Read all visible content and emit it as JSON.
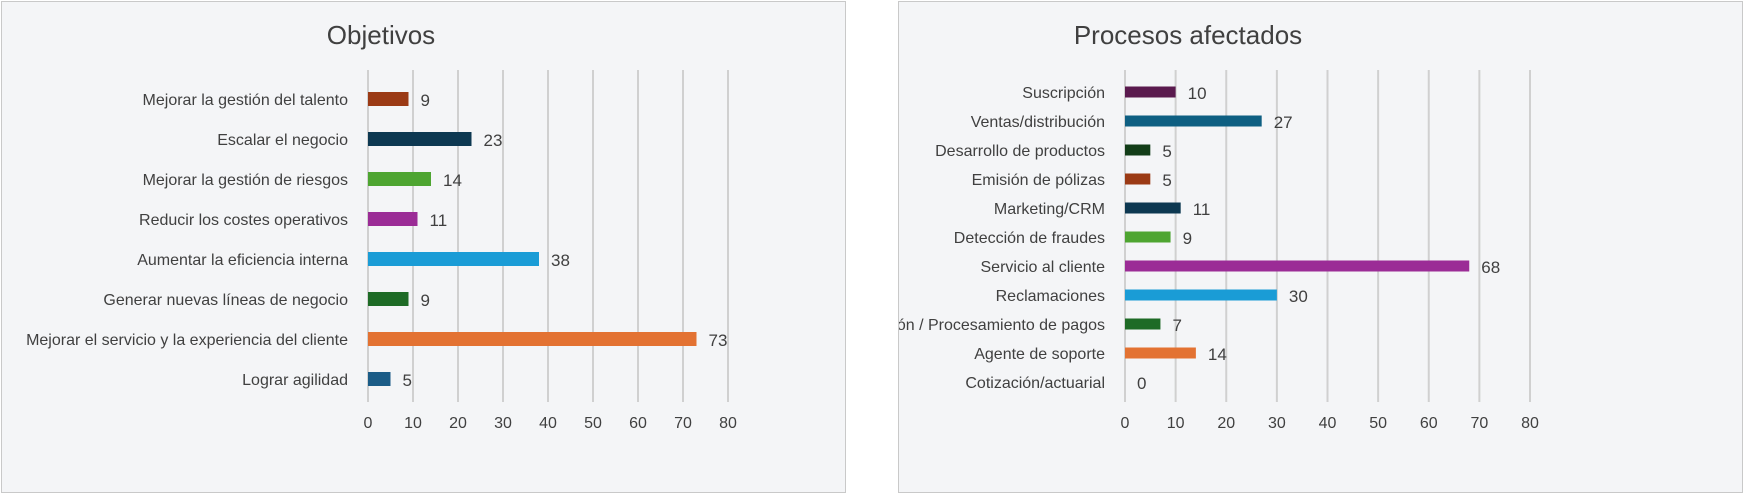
{
  "chart_data": [
    {
      "type": "bar",
      "orientation": "horizontal",
      "title": "Objetivos",
      "categories": [
        "Mejorar la gestión del talento",
        "Escalar el negocio",
        "Mejorar la gestión de riesgos",
        "Reducir los costes operativos",
        "Aumentar la eficiencia interna",
        "Generar nuevas líneas de negocio",
        "Mejorar el servicio y la experiencia del cliente",
        "Lograr agilidad"
      ],
      "values": [
        9,
        23,
        14,
        11,
        38,
        9,
        73,
        5
      ],
      "colors": [
        "#9b3a15",
        "#0d3851",
        "#4ea531",
        "#9b2c96",
        "#1a9cd6",
        "#1e6b26",
        "#e37232",
        "#1b5c87"
      ],
      "xlim": [
        0,
        80
      ],
      "xticks": [
        0,
        10,
        20,
        30,
        40,
        50,
        60,
        70,
        80
      ],
      "grid": true,
      "xlabel": "",
      "ylabel": ""
    },
    {
      "type": "bar",
      "orientation": "horizontal",
      "title": "Procesos afectados",
      "categories": [
        "Suscripción",
        "Ventas/distribución",
        "Desarrollo de productos",
        "Emisión de pólizas",
        "Marketing/CRM",
        "Detección de fraudes",
        "Servicio al cliente",
        "Reclamaciones",
        "Facturación / Procesamiento de pagos",
        "Agente de soporte",
        "Cotización/actuarial"
      ],
      "values": [
        10,
        27,
        5,
        5,
        11,
        9,
        68,
        30,
        7,
        14,
        0
      ],
      "colors": [
        "#5a1a4e",
        "#0e5f82",
        "#123d18",
        "#9b3a15",
        "#0d3851",
        "#4ea531",
        "#9b2c96",
        "#1a9cd6",
        "#1e6b26",
        "#e37232",
        "#1b5c87"
      ],
      "xlim": [
        0,
        80
      ],
      "xticks": [
        0,
        10,
        20,
        30,
        40,
        50,
        60,
        70,
        80
      ],
      "grid": true,
      "xlabel": "",
      "ylabel": ""
    }
  ]
}
